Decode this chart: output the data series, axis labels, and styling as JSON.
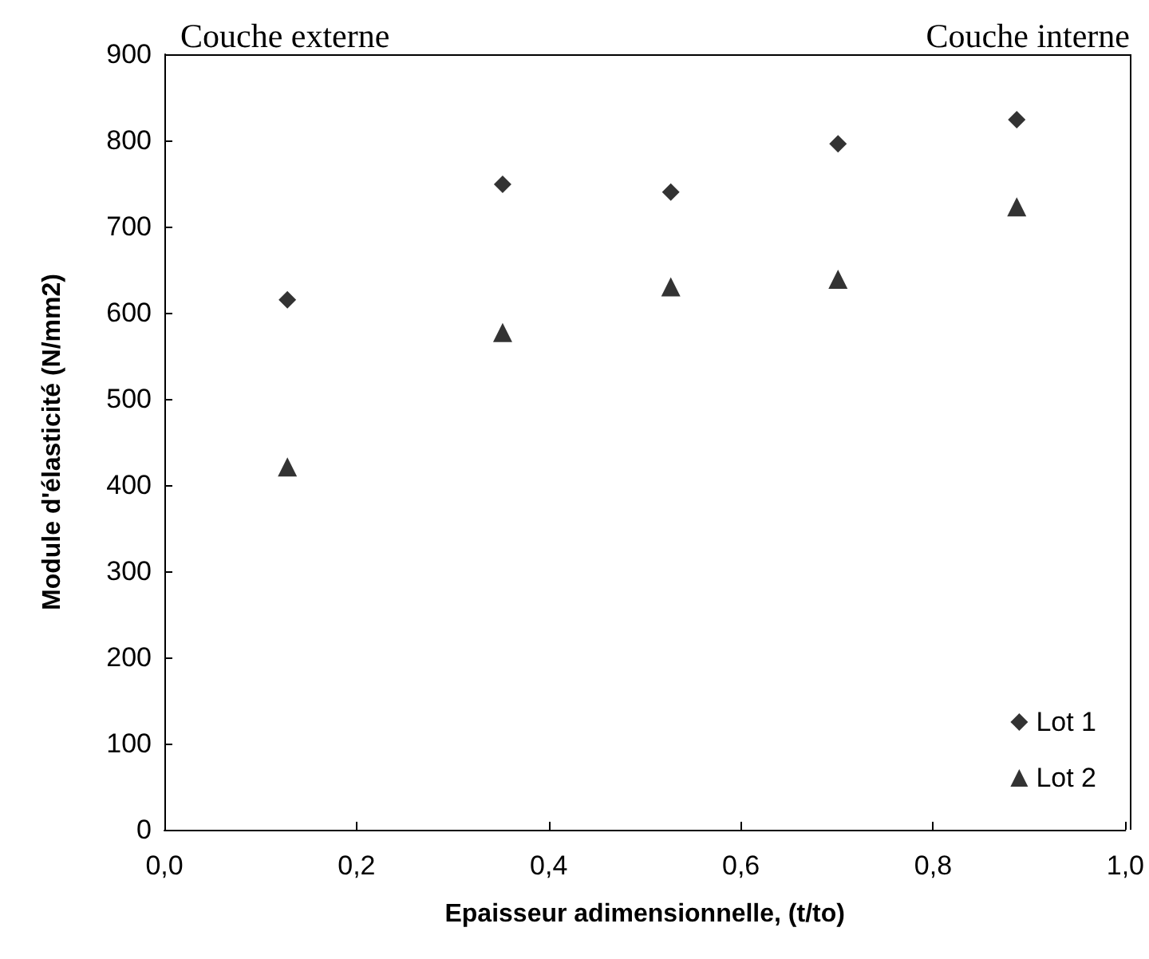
{
  "chart_data": {
    "type": "scatter",
    "xlabel": "Epaisseur adimensionnelle, (t/to)",
    "ylabel": "Module d'élasticité (N/mm2)",
    "annotations": [
      "Couche externe",
      "Couche interne"
    ],
    "series": [
      {
        "name": "Lot 1",
        "color": "#000000",
        "marker": "diamond",
        "x": [
          0.128,
          0.352,
          0.527,
          0.701,
          0.887
        ],
        "values": [
          615,
          749,
          740,
          796,
          824
        ]
      },
      {
        "name": "Lot 2",
        "color": "#000000",
        "marker": "triangle",
        "x": [
          0.128,
          0.352,
          0.527,
          0.701,
          0.887
        ],
        "values": [
          421,
          577,
          630,
          639,
          723
        ]
      }
    ],
    "xlim": [
      0,
      1
    ],
    "xticks": [
      {
        "value": 0,
        "label": "0,0"
      },
      {
        "value": 0.2,
        "label": "0,2"
      },
      {
        "value": 0.4,
        "label": "0,4"
      },
      {
        "value": 0.6,
        "label": "0,6"
      },
      {
        "value": 0.8,
        "label": "0,8"
      },
      {
        "value": 1,
        "label": "1,0"
      }
    ],
    "ylim": [
      0,
      900
    ],
    "yticks": [
      0,
      100,
      200,
      300,
      400,
      500,
      600,
      700,
      800,
      900
    ],
    "grid": false,
    "legend": "bottom right"
  }
}
